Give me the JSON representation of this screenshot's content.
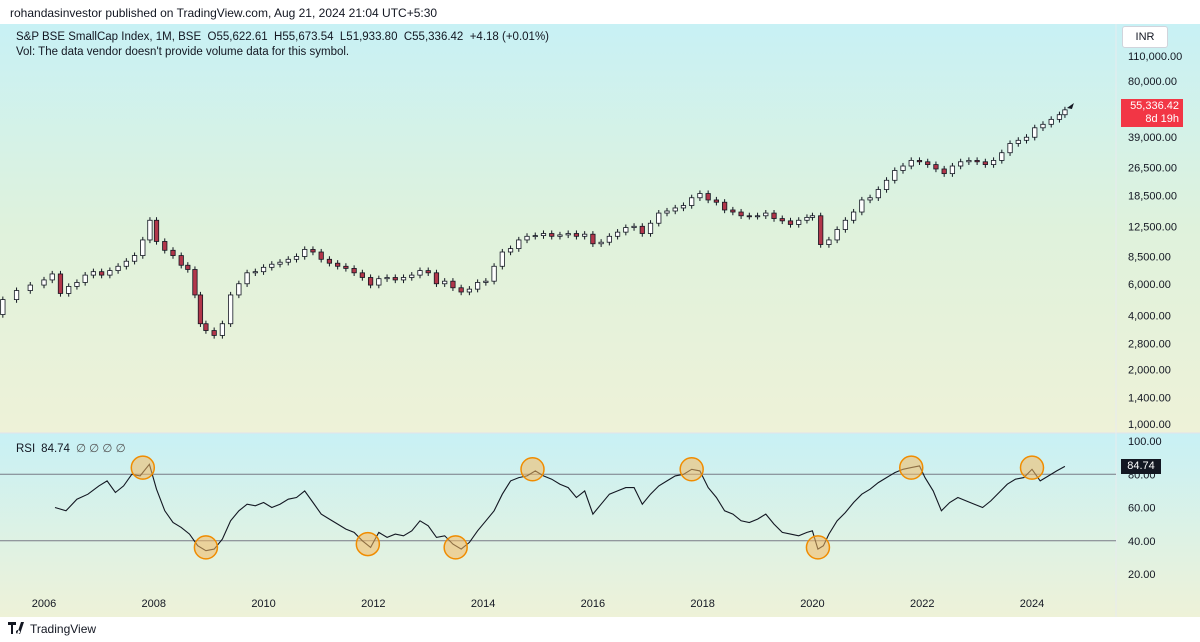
{
  "header": {
    "published": "rohandasinvestor published on TradingView.com, Aug 21, 2024 21:04 UTC+5:30"
  },
  "legend": {
    "symbol": "S&P BSE SmallCap Index, 1M, BSE",
    "open": "O55,622.61",
    "high": "H55,673.54",
    "low": "L51,933.80",
    "close": "C55,336.42",
    "change": "+4.18 (+0.01%)",
    "volume_note": "Vol: The data vendor doesn't provide volume data for this symbol."
  },
  "currency_button": "INR",
  "price_tag": {
    "price": "55,336.42",
    "countdown": "8d 19h"
  },
  "rsi": {
    "label": "RSI",
    "value": "84.74",
    "symbols": "∅ ∅ ∅ ∅",
    "tag": "84.74"
  },
  "colors": {
    "up": "#ffffff",
    "down": "#b2364a",
    "wick": "#131722",
    "marker_fill": "#f4b860",
    "marker_stroke": "#f08c00",
    "tag_red": "#f23645"
  },
  "footer": {
    "logo_icon": "tradingview-logo-icon",
    "brand": "TradingView"
  },
  "chart_data": [
    {
      "type": "candlestick",
      "title": "S&P BSE SmallCap Index, 1M, BSE",
      "y_scale": "log",
      "y_ticks": [
        "110,000.00",
        "80,000.00",
        "39,000.00",
        "26,500.00",
        "18,500.00",
        "12,500.00",
        "8,500.00",
        "6,000.00",
        "4,000.00",
        "2,800.00",
        "2,000.00",
        "1,400.00",
        "1,000.00"
      ],
      "x_ticks": [
        "2006",
        "2008",
        "2010",
        "2012",
        "2014",
        "2016",
        "2018",
        "2020",
        "2022",
        "2024"
      ],
      "close_series": [
        [
          2005.0,
          4050
        ],
        [
          2005.25,
          4900
        ],
        [
          2005.5,
          5500
        ],
        [
          2005.75,
          5900
        ],
        [
          2006.0,
          6300
        ],
        [
          2006.15,
          6800
        ],
        [
          2006.3,
          5300
        ],
        [
          2006.45,
          5800
        ],
        [
          2006.6,
          6100
        ],
        [
          2006.75,
          6700
        ],
        [
          2006.9,
          7000
        ],
        [
          2007.05,
          6700
        ],
        [
          2007.2,
          7100
        ],
        [
          2007.35,
          7500
        ],
        [
          2007.5,
          8000
        ],
        [
          2007.65,
          8600
        ],
        [
          2007.8,
          10500
        ],
        [
          2007.93,
          13500
        ],
        [
          2008.05,
          10300
        ],
        [
          2008.2,
          9200
        ],
        [
          2008.35,
          8600
        ],
        [
          2008.5,
          7600
        ],
        [
          2008.62,
          7200
        ],
        [
          2008.75,
          5200
        ],
        [
          2008.85,
          3600
        ],
        [
          2008.95,
          3300
        ],
        [
          2009.1,
          3100
        ],
        [
          2009.25,
          3600
        ],
        [
          2009.4,
          5200
        ],
        [
          2009.55,
          6000
        ],
        [
          2009.7,
          6900
        ],
        [
          2009.85,
          7000
        ],
        [
          2010.0,
          7400
        ],
        [
          2010.15,
          7700
        ],
        [
          2010.3,
          7900
        ],
        [
          2010.45,
          8200
        ],
        [
          2010.6,
          8500
        ],
        [
          2010.75,
          9300
        ],
        [
          2010.9,
          9000
        ],
        [
          2011.05,
          8200
        ],
        [
          2011.2,
          7800
        ],
        [
          2011.35,
          7500
        ],
        [
          2011.5,
          7300
        ],
        [
          2011.65,
          6900
        ],
        [
          2011.8,
          6500
        ],
        [
          2011.95,
          5900
        ],
        [
          2012.1,
          6400
        ],
        [
          2012.25,
          6500
        ],
        [
          2012.4,
          6300
        ],
        [
          2012.55,
          6500
        ],
        [
          2012.7,
          6700
        ],
        [
          2012.85,
          7100
        ],
        [
          2013.0,
          6900
        ],
        [
          2013.15,
          6000
        ],
        [
          2013.3,
          6200
        ],
        [
          2013.45,
          5700
        ],
        [
          2013.6,
          5400
        ],
        [
          2013.75,
          5600
        ],
        [
          2013.9,
          6100
        ],
        [
          2014.05,
          6200
        ],
        [
          2014.2,
          7500
        ],
        [
          2014.35,
          9000
        ],
        [
          2014.5,
          9400
        ],
        [
          2014.65,
          10500
        ],
        [
          2014.8,
          11000
        ],
        [
          2014.95,
          11100
        ],
        [
          2015.1,
          11400
        ],
        [
          2015.25,
          11000
        ],
        [
          2015.4,
          11200
        ],
        [
          2015.55,
          11400
        ],
        [
          2015.7,
          11000
        ],
        [
          2015.85,
          11300
        ],
        [
          2016.0,
          10000
        ],
        [
          2016.15,
          10200
        ],
        [
          2016.3,
          11000
        ],
        [
          2016.45,
          11600
        ],
        [
          2016.6,
          12300
        ],
        [
          2016.75,
          12500
        ],
        [
          2016.9,
          11400
        ],
        [
          2017.05,
          13000
        ],
        [
          2017.2,
          14800
        ],
        [
          2017.35,
          15200
        ],
        [
          2017.5,
          15800
        ],
        [
          2017.65,
          16300
        ],
        [
          2017.8,
          18000
        ],
        [
          2017.95,
          19000
        ],
        [
          2018.1,
          17500
        ],
        [
          2018.25,
          17000
        ],
        [
          2018.4,
          15400
        ],
        [
          2018.55,
          15000
        ],
        [
          2018.7,
          14300
        ],
        [
          2018.85,
          14200
        ],
        [
          2019.0,
          14300
        ],
        [
          2019.15,
          14800
        ],
        [
          2019.3,
          13800
        ],
        [
          2019.45,
          13400
        ],
        [
          2019.6,
          12800
        ],
        [
          2019.75,
          13500
        ],
        [
          2019.9,
          14000
        ],
        [
          2020.0,
          14300
        ],
        [
          2020.15,
          9900
        ],
        [
          2020.3,
          10500
        ],
        [
          2020.45,
          12000
        ],
        [
          2020.6,
          13500
        ],
        [
          2020.75,
          15000
        ],
        [
          2020.9,
          17500
        ],
        [
          2021.05,
          18000
        ],
        [
          2021.2,
          20000
        ],
        [
          2021.35,
          22500
        ],
        [
          2021.5,
          25500
        ],
        [
          2021.65,
          27000
        ],
        [
          2021.8,
          29000
        ],
        [
          2021.95,
          28500
        ],
        [
          2022.1,
          27500
        ],
        [
          2022.25,
          26000
        ],
        [
          2022.4,
          24500
        ],
        [
          2022.55,
          27000
        ],
        [
          2022.7,
          28500
        ],
        [
          2022.85,
          29000
        ],
        [
          2023.0,
          28500
        ],
        [
          2023.15,
          27500
        ],
        [
          2023.3,
          29000
        ],
        [
          2023.45,
          32000
        ],
        [
          2023.6,
          36000
        ],
        [
          2023.75,
          37500
        ],
        [
          2023.9,
          39000
        ],
        [
          2024.05,
          44000
        ],
        [
          2024.2,
          46000
        ],
        [
          2024.35,
          49000
        ],
        [
          2024.5,
          52000
        ],
        [
          2024.6,
          55336
        ]
      ]
    },
    {
      "type": "line",
      "title": "RSI",
      "y_ticks": [
        "100.00",
        "80.00",
        "60.00",
        "40.00",
        "20.00"
      ],
      "ylim": [
        15,
        100
      ],
      "levels": [
        80,
        40
      ],
      "highlight_circles": [
        [
          2007.8,
          84
        ],
        [
          2008.95,
          36
        ],
        [
          2011.9,
          38
        ],
        [
          2013.5,
          36
        ],
        [
          2014.9,
          83
        ],
        [
          2017.8,
          83
        ],
        [
          2020.1,
          36
        ],
        [
          2021.8,
          84
        ],
        [
          2024.0,
          84
        ]
      ],
      "series": [
        [
          2006.2,
          60
        ],
        [
          2006.4,
          58
        ],
        [
          2006.6,
          65
        ],
        [
          2006.8,
          68
        ],
        [
          2007.0,
          73
        ],
        [
          2007.15,
          76
        ],
        [
          2007.3,
          69
        ],
        [
          2007.45,
          73
        ],
        [
          2007.6,
          80
        ],
        [
          2007.75,
          79
        ],
        [
          2007.92,
          86
        ],
        [
          2008.05,
          71
        ],
        [
          2008.2,
          58
        ],
        [
          2008.35,
          51
        ],
        [
          2008.5,
          48
        ],
        [
          2008.65,
          44
        ],
        [
          2008.8,
          37
        ],
        [
          2008.95,
          34
        ],
        [
          2009.1,
          35
        ],
        [
          2009.25,
          41
        ],
        [
          2009.4,
          52
        ],
        [
          2009.55,
          58
        ],
        [
          2009.7,
          62
        ],
        [
          2009.85,
          61
        ],
        [
          2010.0,
          63
        ],
        [
          2010.15,
          60
        ],
        [
          2010.3,
          62
        ],
        [
          2010.45,
          65
        ],
        [
          2010.6,
          66
        ],
        [
          2010.75,
          70
        ],
        [
          2010.9,
          63
        ],
        [
          2011.05,
          56
        ],
        [
          2011.2,
          53
        ],
        [
          2011.35,
          50
        ],
        [
          2011.5,
          47
        ],
        [
          2011.65,
          45
        ],
        [
          2011.8,
          40
        ],
        [
          2011.95,
          36
        ],
        [
          2012.1,
          45
        ],
        [
          2012.25,
          42
        ],
        [
          2012.4,
          44
        ],
        [
          2012.55,
          43
        ],
        [
          2012.7,
          46
        ],
        [
          2012.85,
          52
        ],
        [
          2013.0,
          49
        ],
        [
          2013.15,
          42
        ],
        [
          2013.3,
          43
        ],
        [
          2013.45,
          38
        ],
        [
          2013.6,
          35
        ],
        [
          2013.75,
          39
        ],
        [
          2013.9,
          46
        ],
        [
          2014.05,
          52
        ],
        [
          2014.2,
          58
        ],
        [
          2014.35,
          68
        ],
        [
          2014.5,
          76
        ],
        [
          2014.65,
          78
        ],
        [
          2014.8,
          79
        ],
        [
          2014.95,
          82
        ],
        [
          2015.1,
          79
        ],
        [
          2015.25,
          77
        ],
        [
          2015.4,
          74
        ],
        [
          2015.55,
          72
        ],
        [
          2015.7,
          66
        ],
        [
          2015.85,
          70
        ],
        [
          2016.0,
          56
        ],
        [
          2016.15,
          62
        ],
        [
          2016.3,
          68
        ],
        [
          2016.45,
          70
        ],
        [
          2016.6,
          72
        ],
        [
          2016.75,
          72
        ],
        [
          2016.9,
          62
        ],
        [
          2017.05,
          68
        ],
        [
          2017.2,
          73
        ],
        [
          2017.35,
          76
        ],
        [
          2017.5,
          79
        ],
        [
          2017.65,
          80
        ],
        [
          2017.8,
          83
        ],
        [
          2017.95,
          82
        ],
        [
          2018.1,
          72
        ],
        [
          2018.25,
          66
        ],
        [
          2018.4,
          58
        ],
        [
          2018.55,
          56
        ],
        [
          2018.7,
          52
        ],
        [
          2018.85,
          51
        ],
        [
          2019.0,
          53
        ],
        [
          2019.15,
          56
        ],
        [
          2019.3,
          50
        ],
        [
          2019.45,
          45
        ],
        [
          2019.6,
          44
        ],
        [
          2019.75,
          43
        ],
        [
          2019.9,
          45
        ],
        [
          2020.0,
          46
        ],
        [
          2020.1,
          35
        ],
        [
          2020.2,
          37
        ],
        [
          2020.3,
          44
        ],
        [
          2020.45,
          52
        ],
        [
          2020.6,
          57
        ],
        [
          2020.75,
          63
        ],
        [
          2020.9,
          68
        ],
        [
          2021.05,
          71
        ],
        [
          2021.2,
          75
        ],
        [
          2021.35,
          78
        ],
        [
          2021.5,
          81
        ],
        [
          2021.65,
          83
        ],
        [
          2021.8,
          84
        ],
        [
          2021.95,
          85
        ],
        [
          2022.05,
          78
        ],
        [
          2022.2,
          70
        ],
        [
          2022.35,
          58
        ],
        [
          2022.5,
          63
        ],
        [
          2022.65,
          66
        ],
        [
          2022.8,
          64
        ],
        [
          2022.95,
          62
        ],
        [
          2023.1,
          60
        ],
        [
          2023.25,
          64
        ],
        [
          2023.4,
          69
        ],
        [
          2023.55,
          74
        ],
        [
          2023.7,
          77
        ],
        [
          2023.85,
          78
        ],
        [
          2024.0,
          83
        ],
        [
          2024.15,
          76
        ],
        [
          2024.3,
          79
        ],
        [
          2024.45,
          82
        ],
        [
          2024.6,
          84.74
        ]
      ]
    }
  ]
}
